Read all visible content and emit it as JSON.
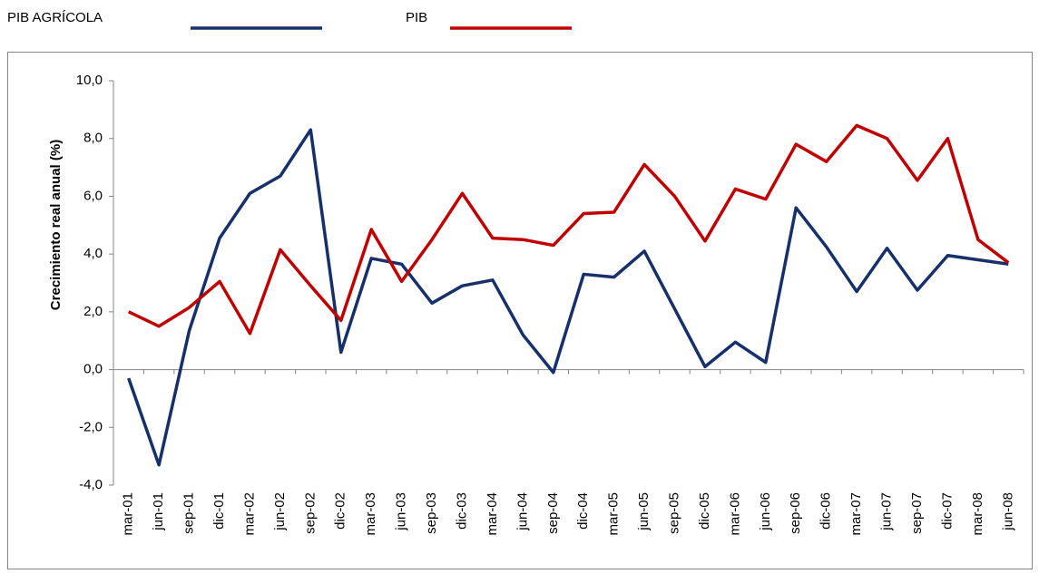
{
  "chart_data": {
    "type": "line",
    "y_label": "Crecimiento real anual (%)",
    "categories": [
      "mar-01",
      "jun-01",
      "sep-01",
      "dic-01",
      "mar-02",
      "jun-02",
      "sep-02",
      "dic-02",
      "mar-03",
      "jun-03",
      "sep-03",
      "dic-03",
      "mar-04",
      "jun-04",
      "sep-04",
      "dic-04",
      "mar-05",
      "jun-05",
      "sep-05",
      "dic-05",
      "mar-06",
      "jun-06",
      "sep-06",
      "dic-06",
      "mar-07",
      "jun-07",
      "sep-07",
      "dic-07",
      "mar-08",
      "jun-08"
    ],
    "series": [
      {
        "name": "PIB AGRÍCOLA",
        "color": "#17306b",
        "values": [
          -0.3,
          -3.3,
          1.35,
          4.55,
          6.1,
          6.7,
          8.3,
          0.6,
          3.85,
          3.65,
          2.3,
          2.9,
          3.1,
          1.2,
          -0.1,
          3.3,
          3.2,
          4.1,
          2.1,
          0.1,
          0.95,
          0.25,
          5.6,
          4.25,
          2.7,
          4.2,
          2.75,
          3.95,
          3.8,
          3.65
        ]
      },
      {
        "name": "PIB",
        "color": "#c00000",
        "values": [
          2.0,
          1.5,
          2.15,
          3.05,
          1.25,
          4.15,
          2.9,
          1.7,
          4.85,
          3.05,
          4.5,
          6.1,
          4.55,
          4.5,
          4.3,
          5.4,
          5.45,
          7.1,
          6.0,
          4.45,
          6.25,
          5.9,
          7.8,
          7.2,
          8.45,
          8.0,
          6.55,
          8.0,
          4.5,
          3.7
        ]
      }
    ],
    "ylim": [
      -4,
      10
    ],
    "yticks": [
      {
        "value": -4,
        "label": "-4,0"
      },
      {
        "value": -2,
        "label": "-2,0"
      },
      {
        "value": 0,
        "label": "0,0"
      },
      {
        "value": 2,
        "label": "2,0"
      },
      {
        "value": 4,
        "label": "4,0"
      },
      {
        "value": 6,
        "label": "6,0"
      },
      {
        "value": 8,
        "label": "8,0"
      },
      {
        "value": 10,
        "label": "10,0"
      }
    ],
    "grid": false,
    "legend": "top"
  }
}
